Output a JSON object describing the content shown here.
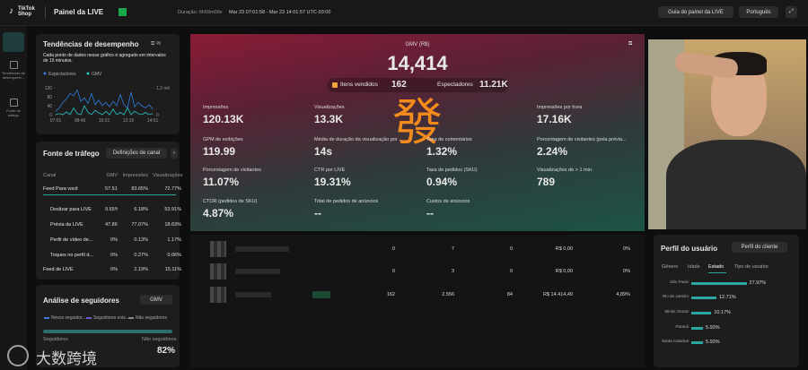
{
  "top_bar": {
    "logo": "TikTok Shop",
    "title": "Painel da LIVE",
    "duration": "Duração: 6h59m09s",
    "time_range": "Mar 23 07:01:58 - Mar 23 14:01:57 UTC-03:00",
    "guide_button": "Guia do painel da LIVE",
    "language": "Português"
  },
  "sidebar": {
    "items": [
      "Tendências de desempenh...",
      "Fonte de tráfego"
    ]
  },
  "trend_panel": {
    "title": "Tendências de desempenho",
    "description": "Cada ponto de dados nesse gráfico é agregado em intervalos de 15 minutos.",
    "chart": {
      "type": "line",
      "series": [
        {
          "name": "Espectadores",
          "color": "#2f7fe0",
          "values": [
            15,
            30,
            55,
            70,
            95,
            85,
            110,
            60,
            75,
            50,
            95,
            45,
            65,
            40,
            55,
            35,
            60,
            40,
            90,
            45,
            30,
            100,
            35,
            55,
            40,
            30,
            45,
            25
          ]
        },
        {
          "name": "GMV",
          "color": "#27c5c5",
          "axis": "y2",
          "values": [
            0,
            50,
            0,
            120,
            0,
            300,
            50,
            0,
            400,
            100,
            0,
            200,
            80,
            0,
            150,
            0,
            250,
            0,
            100,
            0,
            300,
            0,
            150,
            50,
            0,
            100,
            0,
            50
          ]
        }
      ],
      "ylim": [
        0,
        120
      ],
      "yticks": [
        0,
        40,
        80,
        120
      ],
      "y2lim": [
        0,
        1200
      ],
      "y2ticks": [
        0,
        {
          "value": 1200,
          "label": "1,2 mil"
        }
      ],
      "xticks": [
        "07:01",
        "08:46",
        "10:31",
        "12:16",
        "14:01"
      ]
    }
  },
  "traffic_panel": {
    "title": "Fonte de tráfego",
    "button": "Definições de canal",
    "columns": [
      "Canal",
      "GMV",
      "Impressões",
      "Visualizações"
    ],
    "rows": [
      [
        "Feed Para você",
        "57.51%",
        "83.65%",
        "72.77%"
      ],
      [
        "Deslizar para LIVE",
        "9.65%",
        "6.18%",
        "53.91%"
      ],
      [
        "Prévia da LIVE",
        "47.86%",
        "77.07%",
        "18.63%"
      ],
      [
        "Perfil de vídeo de...",
        "0%",
        "0.13%",
        "1.17%"
      ],
      [
        "Toques no perfil d...",
        "0%",
        "0.27%",
        "0.06%"
      ],
      [
        "Feed de LIVE",
        "0%",
        "2.19%",
        "15.11%"
      ]
    ]
  },
  "followers_panel": {
    "title": "Análise de seguidores",
    "dropdown": "GMV",
    "legend": [
      "Novos seguidor...",
      "Seguidores exis...",
      "Não seguidores"
    ],
    "label_left": "Seguidores",
    "label_right": "Não seguidores",
    "value_right": "82%"
  },
  "gmv_panel": {
    "label": "GMV (R$)",
    "value": "14,414",
    "items_sold_label": "Itens vendidos",
    "items_sold": "162",
    "viewers_label": "Espectadores",
    "viewers": "11.21K",
    "overlay": "發",
    "metrics": [
      [
        {
          "label": "Impressões",
          "value": "120.13K"
        },
        {
          "label": "Visualizações",
          "value": "13.3K"
        },
        {
          "label": "Impressões por hora",
          "value": "17.16K"
        }
      ],
      [
        {
          "label": "GPM de exibições",
          "value": "119.99"
        },
        {
          "label": "Média de duração da visualização por ...",
          "value": "14s"
        },
        {
          "label": "Taxa de comentários",
          "value": "1.32%"
        },
        {
          "label": "Porcentagem de visitantes (pela prévia...",
          "value": "2.24%"
        }
      ],
      [
        {
          "label": "Porcentagem de visitantes",
          "value": "11.07%"
        },
        {
          "label": "CTR por LIVE",
          "value": "19.31%"
        },
        {
          "label": "Taxa de pedidos (SKU)",
          "value": "0.94%"
        },
        {
          "label": "Visualizações de > 1 min.",
          "value": "789"
        }
      ],
      [
        {
          "label": "CTOR (pedidos de SKU)",
          "value": "4.87%"
        },
        {
          "label": "Total de pedidos de anúncios",
          "value": "--"
        },
        {
          "label": "Custos de anúncios",
          "value": "--"
        }
      ]
    ]
  },
  "products": {
    "rows": [
      [
        "0",
        "7",
        "0",
        "R$ 0,00",
        "0%"
      ],
      [
        "0",
        "3",
        "0",
        "R$ 0,00",
        "0%"
      ],
      [
        "162",
        "2.556",
        "84",
        "R$ 14.414,49",
        "4,89%"
      ]
    ]
  },
  "user_profile": {
    "title": "Perfil do usuário",
    "dropdown": "Perfil do cliente",
    "tabs": [
      "Gênero",
      "Idade",
      "Estado",
      "Tipo de usuário"
    ],
    "chart": {
      "type": "bar",
      "color": "#2aa7a0",
      "categories": [
        "São Paulo",
        "Rio de Janeiro",
        "Minas Gerais",
        "Paraná",
        "Santa Catarina"
      ],
      "values": [
        27.97,
        12.71,
        10.17,
        5.93,
        5.93
      ],
      "value_labels": [
        "27.97%",
        "12.71%",
        "10.17%",
        "5.93%",
        "5.93%"
      ]
    }
  },
  "watermark": "大数跨境"
}
